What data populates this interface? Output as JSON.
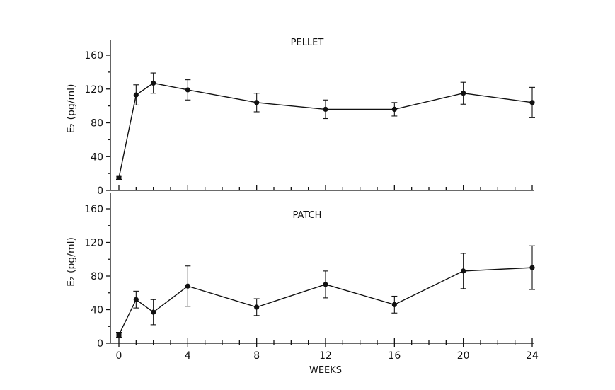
{
  "chart_data": [
    {
      "type": "line",
      "title": "PELLET",
      "ylabel": "E₂ (pg/ml)",
      "xlabel": "",
      "ylim": [
        0,
        160
      ],
      "xlim": [
        0,
        24
      ],
      "yticks": [
        0,
        40,
        80,
        120,
        160
      ],
      "x": [
        0,
        1,
        2,
        4,
        8,
        12,
        16,
        20,
        24
      ],
      "series": [
        {
          "values": [
            15,
            113,
            127,
            119,
            104,
            96,
            96,
            115,
            104
          ],
          "error": [
            2,
            12,
            12,
            12,
            11,
            11,
            8,
            13,
            18
          ]
        }
      ]
    },
    {
      "type": "line",
      "title": "PATCH",
      "ylabel": "E₂ (pg/ml)",
      "xlabel": "WEEKS",
      "ylim": [
        0,
        160
      ],
      "xlim": [
        0,
        24
      ],
      "yticks": [
        0,
        40,
        80,
        120,
        160
      ],
      "xticks": [
        0,
        4,
        8,
        12,
        16,
        20,
        24
      ],
      "x": [
        0,
        1,
        2,
        4,
        8,
        12,
        16,
        20,
        24
      ],
      "series": [
        {
          "values": [
            10,
            52,
            37,
            68,
            43,
            70,
            46,
            86,
            90
          ],
          "error": [
            3,
            10,
            15,
            24,
            10,
            16,
            10,
            21,
            26
          ]
        }
      ]
    }
  ]
}
